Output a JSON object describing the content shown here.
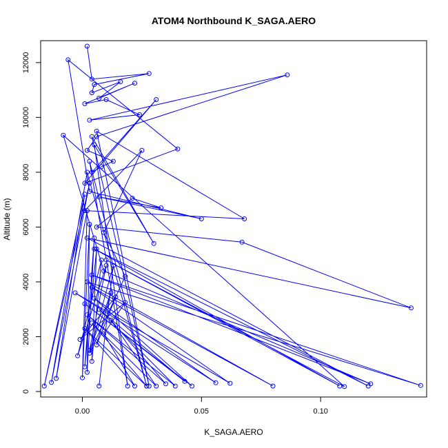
{
  "chart_data": {
    "type": "line",
    "title": "ATOM4 Northbound K_SAGA.AERO",
    "xlabel": "K_SAGA.AERO",
    "ylabel": "Altitude (m)",
    "xlim": [
      -0.0175,
      0.1445
    ],
    "ylim": [
      -200,
      12800
    ],
    "xticks": [
      0.0,
      0.05,
      0.1
    ],
    "xtick_labels": [
      "0.00",
      "0.05",
      "0.10"
    ],
    "yticks": [
      0,
      2000,
      4000,
      6000,
      8000,
      10000,
      12000
    ],
    "ytick_labels": [
      "0",
      "2000",
      "4000",
      "6000",
      "8000",
      "10000",
      "12000"
    ],
    "grid": false,
    "legend": "none",
    "color": "#0000ff",
    "marker": "open-circle",
    "series": [
      {
        "x": [
          0.002,
          0.004,
          0.028,
          0.005,
          0.004,
          0.016,
          0.007,
          0.022,
          0.001,
          0.01,
          0.024,
          0.003,
          0.086,
          0.006,
          0.002,
          0.013,
          0.008,
          0.004,
          0.031,
          0.001,
          0.04,
          -0.006,
          0.003,
          0.05,
          0.007,
          0.033,
          0.021,
          0.006,
          0.067,
          0.138,
          0.002,
          0.12,
          0.005,
          0.108,
          0.01,
          0.11,
          -0.008,
          0.009,
          0.121,
          0.004,
          0.142,
          0.002,
          0.08,
          0.004,
          0.062,
          -0.003,
          0.056,
          0.005,
          0.046,
          0.001,
          0.043,
          0.007,
          0.039,
          0.002,
          0.035,
          0.012,
          0.031,
          0.004,
          0.027,
          0.001,
          0.022,
          0.009,
          0.018,
          -0.001,
          0.014,
          0.006,
          0.012,
          0.003,
          0.01,
          -0.002,
          0.008,
          0.004,
          0.006,
          0.001,
          0.005,
          0.002,
          0.003,
          0.0,
          0.002,
          -0.011,
          0.001,
          -0.016,
          0.003,
          -0.013,
          0.002,
          0.027,
          0.003,
          0.019,
          0.005,
          0.03,
          0.004,
          0.028,
          0.006,
          0.068,
          0.001,
          0.025,
          0.009,
          0.018,
          0.003,
          0.013,
          0.007
        ],
        "y": [
          12600,
          11400,
          11600,
          11200,
          10900,
          11300,
          10700,
          11250,
          10500,
          10650,
          10100,
          9900,
          11550,
          9300,
          8800,
          8400,
          8200,
          8000,
          10650,
          7600,
          8850,
          12100,
          7300,
          6300,
          7100,
          6700,
          7050,
          6000,
          5450,
          3050,
          5600,
          200,
          5200,
          200,
          4800,
          180,
          9350,
          4400,
          280,
          4250,
          220,
          4000,
          200,
          3800,
          300,
          3600,
          320,
          3400,
          200,
          3200,
          370,
          3000,
          200,
          2800,
          280,
          2600,
          200,
          2500,
          200,
          2300,
          200,
          2100,
          3250,
          1900,
          3450,
          1700,
          3600,
          1500,
          4600,
          1300,
          4800,
          1100,
          5200,
          900,
          5600,
          700,
          6100,
          500,
          6600,
          480,
          7200,
          200,
          7600,
          330,
          8000,
          200,
          8400,
          200,
          9000,
          5400,
          9300,
          200,
          9500,
          6300,
          6600,
          8800,
          5800,
          4200,
          1400,
          4600,
          200
        ]
      }
    ]
  }
}
